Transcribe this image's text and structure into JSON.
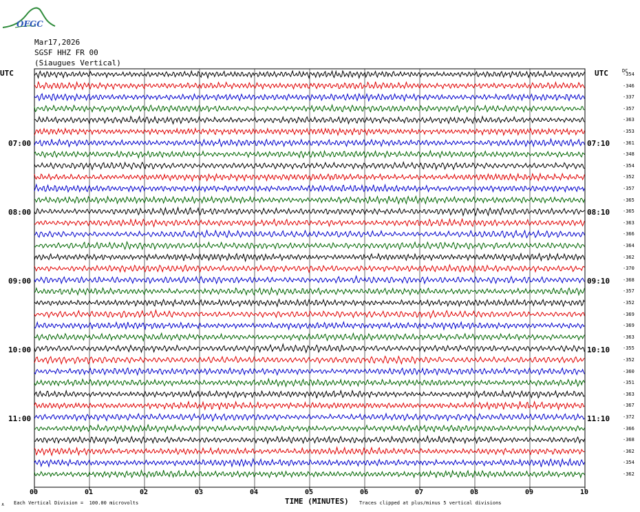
{
  "header": {
    "logo_text": "OFGC",
    "date": "Mar17,2026",
    "station": "SGSF HHZ FR 00",
    "location": "(Siaugues Vertical)"
  },
  "axis": {
    "left_tz": "UTC",
    "right_tz": "UTC",
    "dc_label": "DC",
    "xlabel": "TIME (MINUTES)",
    "x_ticks": [
      "00",
      "01",
      "02",
      "03",
      "04",
      "05",
      "06",
      "07",
      "08",
      "09",
      "10"
    ]
  },
  "footer": {
    "left_mark": "∧",
    "division_note": "Each Vertical Division =  100.00 microvolts",
    "clip_note": "Traces clipped at plus/minus 5 vertical divisions"
  },
  "colors": {
    "cycle": [
      "#000000",
      "#e00000",
      "#0000cc",
      "#006600"
    ],
    "grid": "#000000"
  },
  "chart_data": {
    "type": "line",
    "title": "",
    "x_range_minutes": [
      0,
      10
    ],
    "trace_duration_minutes": 10,
    "left_hour_labels": [
      "07:00",
      "08:00",
      "09:00",
      "10:00",
      "11:00"
    ],
    "right_hour_labels": [
      "07:10",
      "08:10",
      "09:10",
      "10:10",
      "11:10"
    ],
    "hour_label_trace_index": [
      6,
      12,
      18,
      24,
      30
    ],
    "dc_offsets": [
      -354,
      -346,
      -337,
      -357,
      -363,
      -353,
      -361,
      -348,
      -354,
      -352,
      -357,
      -365,
      -365,
      -363,
      -366,
      -364,
      -362,
      -370,
      -368,
      -357,
      -352,
      -369,
      -369,
      -363,
      -355,
      -352,
      -360,
      -351,
      -363,
      -367,
      -372,
      -366,
      -368,
      -362,
      -354,
      -362
    ]
  }
}
